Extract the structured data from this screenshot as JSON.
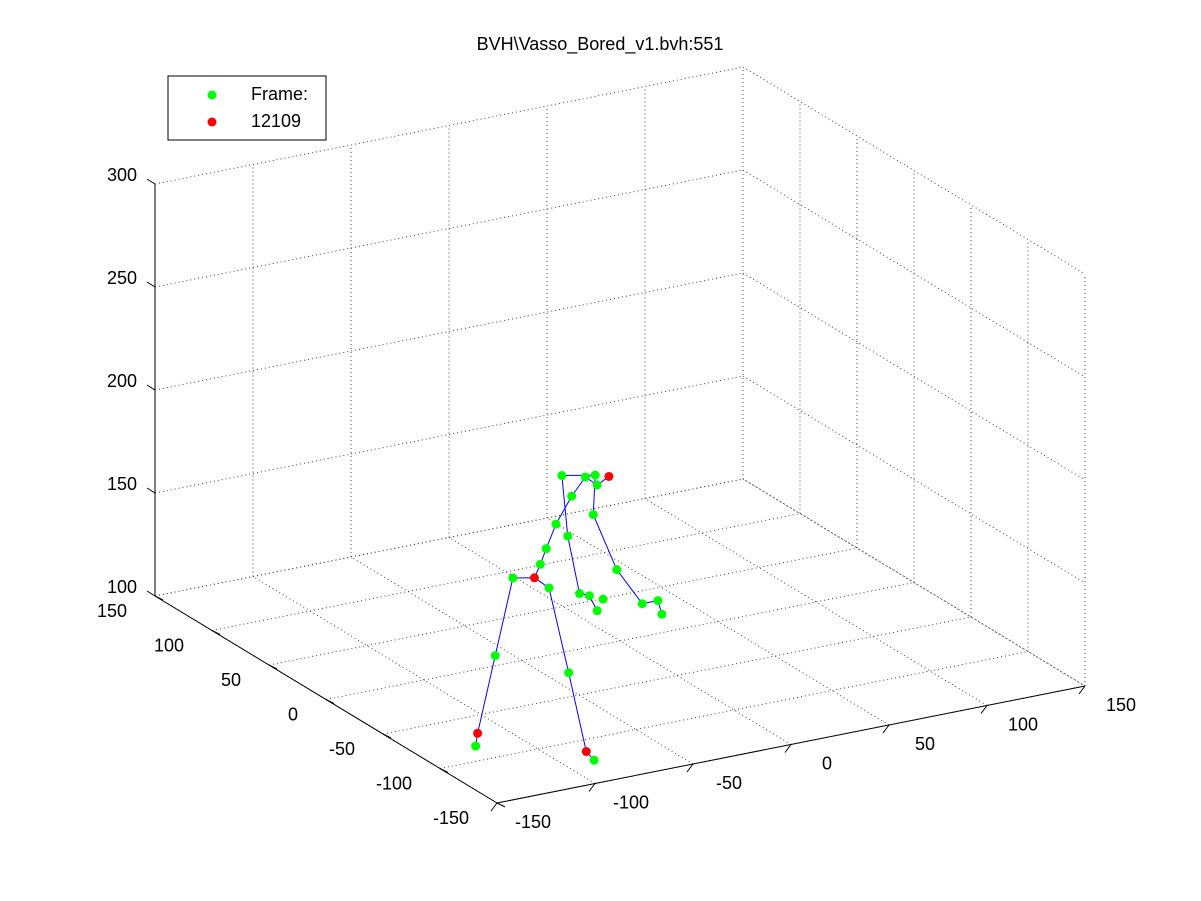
{
  "chart_data": {
    "type": "scatter3d",
    "title": "BVH\\Vasso_Bored_v1.bvh:551",
    "xlim": [
      -150,
      150
    ],
    "ylim": [
      -150,
      150
    ],
    "zlim": [
      100,
      300
    ],
    "xticks": [
      -150,
      -100,
      -50,
      0,
      50,
      100,
      150
    ],
    "yticks": [
      -150,
      -100,
      -50,
      0,
      50,
      100,
      150
    ],
    "zticks": [
      100,
      150,
      200,
      250,
      300
    ],
    "grid": true,
    "legend": "northwest",
    "series": [
      {
        "name": "Frame:",
        "color": "#00ff00",
        "x": [
          -126,
          -116,
          -107,
          -106,
          -96,
          -83,
          -93,
          -90,
          -85,
          -77,
          -70,
          -64,
          -82,
          -65,
          -79,
          -73,
          -68,
          -61,
          -64,
          -66,
          -54,
          -41,
          -33,
          -31
        ],
        "y": [
          -90,
          -90,
          -90,
          -120,
          -120,
          -120,
          -90,
          -90,
          -90,
          -90,
          -90,
          -90,
          -90,
          -90,
          -90,
          -90,
          -90,
          -90,
          -90,
          -90,
          -90,
          -90,
          -90,
          -90
        ],
        "z": [
          103,
          145,
          181,
          186,
          143,
          98,
          185,
          192,
          203,
          215,
          223,
          218,
          226,
          223,
          196,
          167,
          165,
          162,
          157,
          204,
          175,
          156,
          156,
          149
        ]
      },
      {
        "name": "12109",
        "color": "#ff0000",
        "x": [
          -96,
          -58,
          -125,
          -87
        ],
        "y": [
          -90,
          -90,
          -90,
          -120
        ],
        "z": [
          179,
          221,
          109,
          103
        ]
      }
    ],
    "line": {
      "color": "#0000ff",
      "x": [
        -126,
        -125,
        -116,
        -107,
        -96,
        -106,
        -96,
        -87,
        -83,
        null,
        -96,
        -93,
        -90,
        -85,
        -77,
        -70,
        -64,
        -58,
        null,
        -64,
        -68,
        -73,
        -79,
        -82,
        -65,
        -66,
        -54,
        -41,
        -33,
        -31
      ],
      "y": [
        -90,
        -90,
        -90,
        -90,
        -90,
        -120,
        -120,
        -120,
        -120,
        null,
        -90,
        -90,
        -90,
        -90,
        -90,
        -90,
        -90,
        -90,
        null,
        -90,
        -90,
        -90,
        -90,
        -90,
        -90,
        -90,
        -90,
        -90,
        -90,
        -90
      ],
      "z": [
        103,
        109,
        145,
        181,
        179,
        186,
        143,
        103,
        98,
        null,
        179,
        185,
        192,
        203,
        215,
        223,
        218,
        221,
        null,
        157,
        165,
        167,
        196,
        226,
        223,
        204,
        175,
        156,
        156,
        149
      ]
    }
  }
}
